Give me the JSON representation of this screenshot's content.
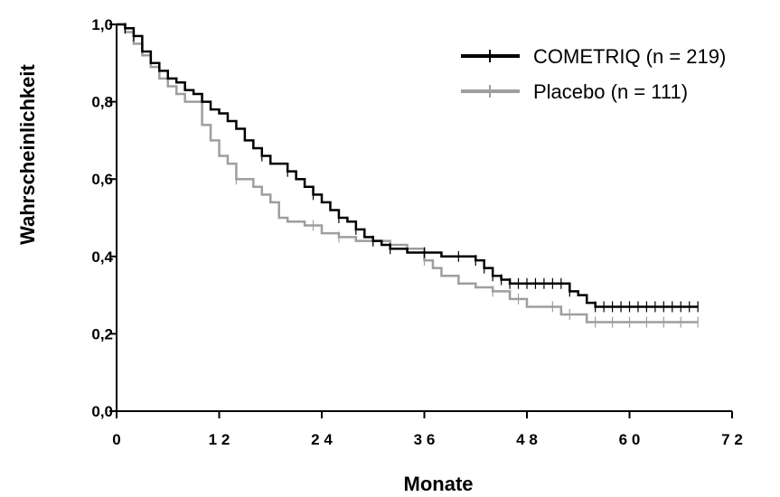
{
  "chart_data": {
    "type": "line",
    "step": true,
    "xlabel": "Monate",
    "ylabel": "Wahrscheinlichkeit",
    "xlim": [
      0,
      72
    ],
    "ylim": [
      0.0,
      1.0
    ],
    "x_ticks": [
      0,
      12,
      24,
      36,
      48,
      60,
      72
    ],
    "x_tick_labels": [
      "0",
      "1 2",
      "2 4",
      "3 6",
      "4 8",
      "6 0",
      "7 2"
    ],
    "y_ticks": [
      0.0,
      0.2,
      0.4,
      0.6,
      0.8,
      1.0
    ],
    "y_tick_labels": [
      "0,0",
      "0,2",
      "0,4",
      "0,6",
      "0,8",
      "1,0"
    ],
    "legend_position": "top-right",
    "series": [
      {
        "name": "COMETRIQ (n = 219)",
        "color": "#000000",
        "x": [
          0,
          1,
          2,
          3,
          4,
          5,
          6,
          7,
          8,
          9,
          10,
          11,
          12,
          13,
          14,
          15,
          16,
          17,
          18,
          19,
          20,
          21,
          22,
          23,
          24,
          25,
          26,
          27,
          28,
          29,
          30,
          31,
          32,
          33,
          34,
          36,
          38,
          40,
          42,
          43,
          44,
          45,
          46,
          48,
          50,
          52,
          53,
          54,
          55,
          56,
          58,
          60,
          62,
          64,
          66,
          68
        ],
        "y": [
          1.0,
          0.99,
          0.97,
          0.93,
          0.9,
          0.88,
          0.86,
          0.85,
          0.83,
          0.82,
          0.8,
          0.78,
          0.77,
          0.75,
          0.73,
          0.7,
          0.68,
          0.66,
          0.64,
          0.64,
          0.62,
          0.6,
          0.58,
          0.56,
          0.54,
          0.52,
          0.5,
          0.49,
          0.47,
          0.45,
          0.44,
          0.43,
          0.42,
          0.42,
          0.41,
          0.41,
          0.4,
          0.4,
          0.39,
          0.37,
          0.35,
          0.34,
          0.33,
          0.33,
          0.33,
          0.33,
          0.31,
          0.3,
          0.28,
          0.27,
          0.27,
          0.27,
          0.27,
          0.27,
          0.27,
          0.27
        ],
        "censor_x": [
          1,
          2,
          17,
          20,
          23,
          26,
          28,
          30,
          32,
          36,
          40,
          42,
          43,
          44,
          45,
          46,
          47,
          48,
          49,
          50,
          51,
          52,
          53,
          56,
          57,
          58,
          59,
          60,
          61,
          62,
          63,
          64,
          65,
          66,
          67,
          68
        ]
      },
      {
        "name": "Placebo (n = 111)",
        "color": "#9e9e9e",
        "x": [
          0,
          1,
          2,
          3,
          4,
          5,
          6,
          7,
          8,
          9,
          10,
          11,
          12,
          13,
          14,
          15,
          16,
          17,
          18,
          19,
          20,
          21,
          22,
          24,
          26,
          28,
          30,
          32,
          34,
          36,
          37,
          38,
          40,
          42,
          44,
          46,
          48,
          50,
          52,
          54,
          55,
          56,
          58,
          60,
          62,
          64,
          66,
          68
        ],
        "y": [
          1.0,
          0.98,
          0.95,
          0.92,
          0.89,
          0.86,
          0.84,
          0.82,
          0.8,
          0.8,
          0.74,
          0.7,
          0.66,
          0.64,
          0.6,
          0.6,
          0.58,
          0.56,
          0.54,
          0.5,
          0.49,
          0.49,
          0.48,
          0.46,
          0.45,
          0.44,
          0.44,
          0.43,
          0.42,
          0.39,
          0.37,
          0.35,
          0.33,
          0.32,
          0.31,
          0.29,
          0.27,
          0.27,
          0.25,
          0.25,
          0.23,
          0.23,
          0.23,
          0.23,
          0.23,
          0.23,
          0.23,
          0.23
        ],
        "censor_x": [
          14,
          23,
          26,
          30,
          36,
          44,
          47,
          51,
          53,
          56,
          58,
          60,
          62,
          64,
          66,
          68
        ]
      }
    ]
  }
}
